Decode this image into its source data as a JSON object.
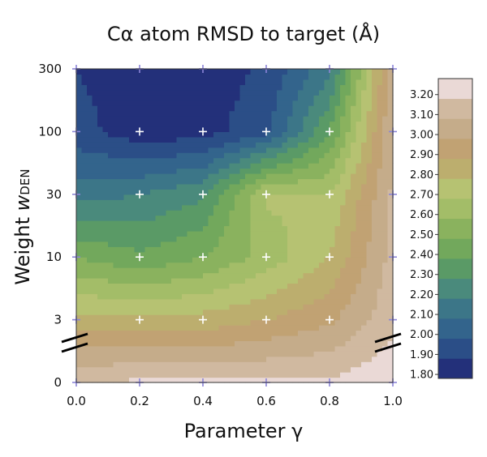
{
  "chart_data": {
    "type": "heatmap",
    "title": "Cα atom RMSD to target (Å)",
    "xlabel": "Parameter γ",
    "ylabel_main": "Weight ",
    "ylabel_var": "w",
    "ylabel_sub": "DEN",
    "x": [
      0.0,
      0.2,
      0.4,
      0.6,
      0.8,
      1.0
    ],
    "y": [
      0,
      3,
      10,
      30,
      100,
      300
    ],
    "x_tick_labels": [
      "0.0",
      "0.2",
      "0.4",
      "0.6",
      "0.8",
      "1.0"
    ],
    "y_tick_labels": [
      "0",
      "3",
      "10",
      "30",
      "100",
      "300"
    ],
    "y_axis_break": true,
    "values": [
      [
        3.18,
        3.2,
        3.2,
        3.2,
        3.2,
        3.26
      ],
      [
        2.82,
        2.8,
        2.82,
        2.88,
        2.96,
        3.15
      ],
      [
        2.48,
        2.4,
        2.48,
        2.62,
        2.78,
        3.12
      ],
      [
        2.14,
        2.18,
        2.26,
        2.7,
        2.68,
        3.1
      ],
      [
        1.92,
        1.82,
        1.84,
        1.95,
        2.38,
        3.08
      ],
      [
        1.88,
        1.82,
        1.82,
        1.9,
        2.15,
        3.05
      ]
    ],
    "colorbar": {
      "levels": [
        1.8,
        1.85,
        1.9,
        1.95,
        2.0,
        2.05,
        2.1,
        2.15,
        2.2,
        2.25,
        2.3,
        2.35,
        2.4,
        2.45,
        2.5,
        2.55,
        2.6,
        2.65,
        2.7,
        2.75,
        2.8,
        2.85,
        2.9,
        2.95,
        3.0,
        3.05,
        3.1,
        3.15,
        3.2,
        3.25
      ],
      "tick_labels": [
        "1.80",
        "1.90",
        "2.00",
        "2.10",
        "2.20",
        "2.30",
        "2.40",
        "2.50",
        "2.60",
        "2.70",
        "2.80",
        "2.90",
        "3.00",
        "3.10",
        "3.20"
      ],
      "colors": [
        "#23307a",
        "#2b4e87",
        "#33648c",
        "#3c7688",
        "#4a8a7c",
        "#5a9a66",
        "#72a85c",
        "#8ab25e",
        "#a3bd68",
        "#b6c272",
        "#bcae6e",
        "#c1a273",
        "#c5ac8a",
        "#d0b9a0",
        "#ead9d6"
      ],
      "min": 1.78,
      "max": 3.28
    }
  }
}
